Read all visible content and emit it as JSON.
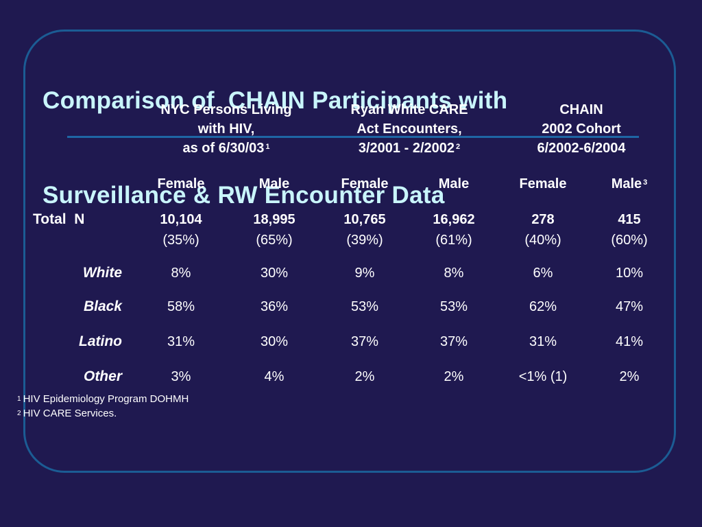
{
  "title": {
    "line1": "Comparison of  CHAIN Participants with",
    "line2": "Surveillance & RW Encounter Data"
  },
  "groups": [
    {
      "lines": [
        "NYC Persons Living",
        "with HIV,",
        "as of 6/30/03"
      ],
      "note": "1"
    },
    {
      "lines": [
        "Ryan White CARE",
        "Act Encounters,",
        "3/2001 - 2/2002"
      ],
      "note": "2"
    },
    {
      "lines": [
        "CHAIN",
        "2002 Cohort",
        "6/2002-6/2004"
      ],
      "note": ""
    }
  ],
  "subheaders": [
    "Female",
    "Male",
    "Female",
    "Male",
    "Female",
    "Male"
  ],
  "subheader_note": "3",
  "total": {
    "label": "Total  N",
    "counts": [
      "10,104",
      "18,995",
      "10,765",
      "16,962",
      "278",
      "415"
    ],
    "percents": [
      "(35%)",
      "(65%)",
      "(39%)",
      "(61%)",
      "(40%)",
      "(60%)"
    ]
  },
  "rows": [
    {
      "label": "White",
      "values": [
        "8%",
        "30%",
        "9%",
        "8%",
        "6%",
        "10%"
      ]
    },
    {
      "label": "Black",
      "values": [
        "58%",
        "36%",
        "53%",
        "53%",
        "62%",
        "47%"
      ]
    },
    {
      "label": "Latino",
      "values": [
        "31%",
        "30%",
        "37%",
        "37%",
        "31%",
        "41%"
      ]
    },
    {
      "label": "Other",
      "values": [
        "3%",
        "4%",
        "2%",
        "2%",
        "<1% (1)",
        "2%"
      ]
    }
  ],
  "footnotes": [
    {
      "num": "1",
      "text": "HIV Epidemiology Program DOHMH"
    },
    {
      "num": "2",
      "text": "HIV CARE Services."
    }
  ],
  "colors": {
    "background": "#1f1950",
    "title": "#c9f5fb",
    "accent": "#1b5c94"
  }
}
